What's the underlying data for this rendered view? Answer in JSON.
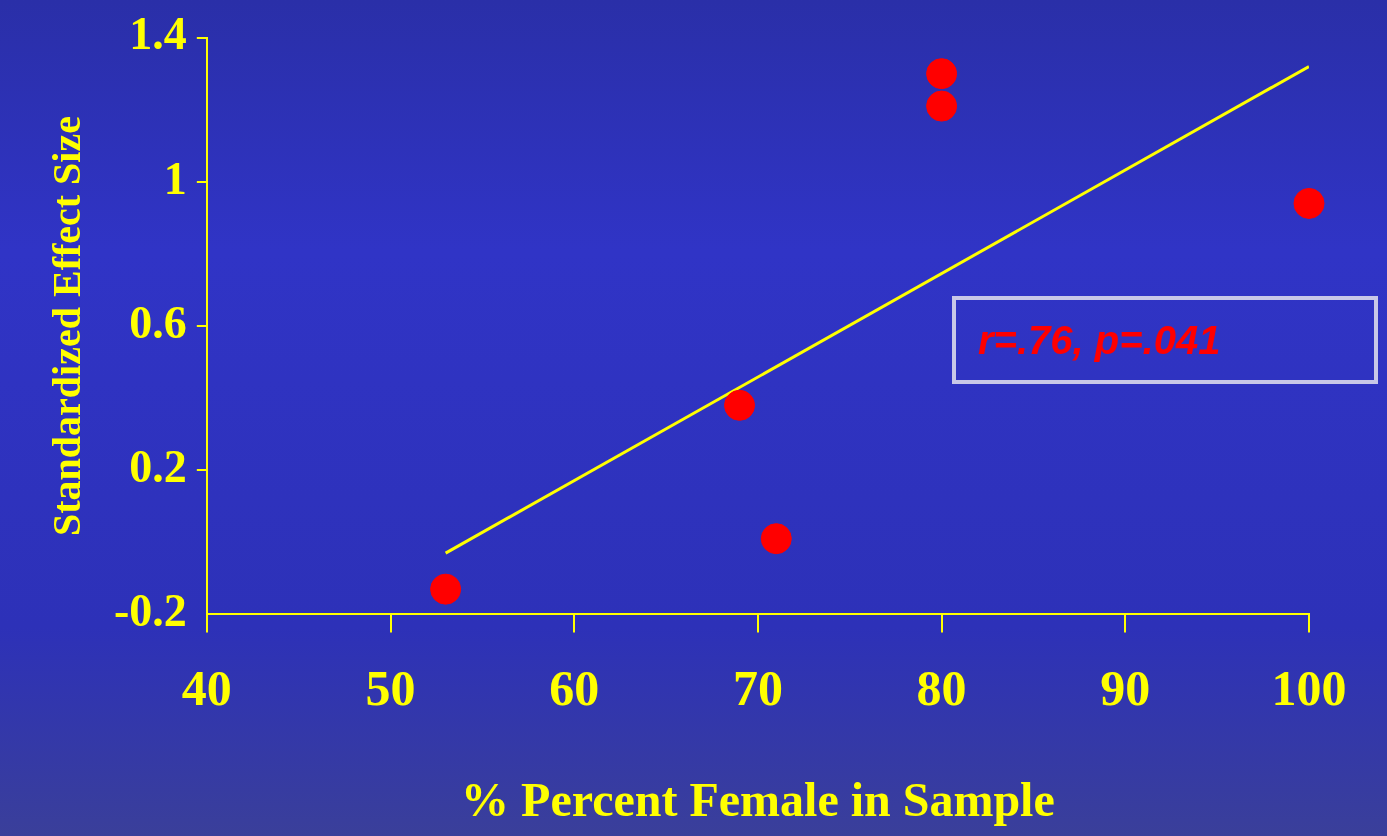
{
  "chart_data": {
    "type": "scatter",
    "xlabel": "% Percent Female in Sample",
    "ylabel": "Standardized Effect Size",
    "xlim": [
      40,
      100
    ],
    "ylim": [
      -0.2,
      1.4
    ],
    "xticks": [
      40,
      50,
      60,
      70,
      80,
      90,
      100
    ],
    "yticks": [
      -0.2,
      0.2,
      0.6,
      1,
      1.4
    ],
    "legend": false,
    "annotations": [
      "r=.76, p=.041"
    ],
    "series": [
      {
        "type": "scatter",
        "marker": "circle",
        "color": "#ff0000",
        "x": [
          53,
          69,
          71,
          80,
          80,
          100
        ],
        "values": [
          -0.13,
          0.38,
          0.01,
          1.3,
          1.21,
          0.94
        ]
      },
      {
        "type": "line",
        "color": "#ffff00",
        "x": [
          53,
          100
        ],
        "values": [
          -0.03,
          1.32
        ]
      }
    ]
  }
}
